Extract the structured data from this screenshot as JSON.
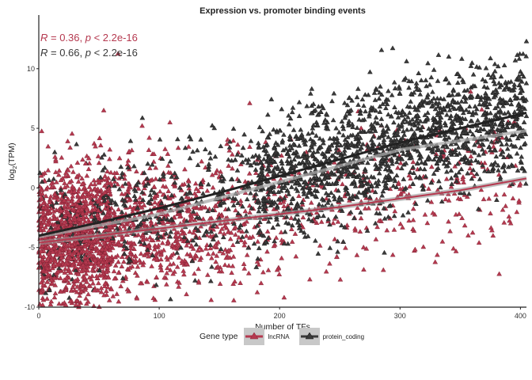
{
  "chart_data": {
    "type": "scatter",
    "title": "Expression vs. promoter binding events",
    "xlabel": "Number of TFs",
    "ylabel_main": "log",
    "ylabel_sub": "2",
    "ylabel_rest": "(TPM)",
    "xlim": [
      0,
      405
    ],
    "ylim": [
      -10,
      14.5
    ],
    "x_ticks": [
      0,
      100,
      200,
      300,
      400
    ],
    "y_ticks": [
      -10,
      -5,
      0,
      5,
      10
    ],
    "grid": false,
    "legend_position": "bottom",
    "legend_title": "Gene type",
    "series": [
      {
        "name": "lncRNA",
        "color": "#b5394f",
        "marker": "triangle",
        "fit_line": {
          "x": [
            0,
            50,
            100,
            150,
            200,
            250,
            300,
            350,
            405
          ],
          "y": [
            -4.6,
            -4.0,
            -3.4,
            -2.8,
            -2.2,
            -1.6,
            -0.9,
            -0.2,
            0.8
          ]
        },
        "correlation": {
          "R_label": "R",
          "R_value": " = 0.36, ",
          "p_label": "p",
          "p_value": " < 2.2e-16"
        }
      },
      {
        "name": "protein_coding",
        "color": "#3a3a3a",
        "marker": "triangle",
        "fit_line": {
          "x": [
            0,
            50,
            100,
            150,
            200,
            250,
            300,
            350,
            405
          ],
          "y": [
            -4.0,
            -2.9,
            -1.7,
            -0.4,
            1.0,
            2.4,
            3.8,
            5.0,
            6.3
          ]
        },
        "correlation": {
          "R_label": "R",
          "R_value": " = 0.66, ",
          "p_label": "p",
          "p_value": " < 2.2e-16"
        }
      }
    ],
    "reference_line": {
      "color": "#a8a8a8",
      "x": [
        0,
        100,
        200,
        300,
        405
      ],
      "y": [
        -4.1,
        -2.2,
        0.5,
        3.2,
        4.8
      ]
    }
  }
}
